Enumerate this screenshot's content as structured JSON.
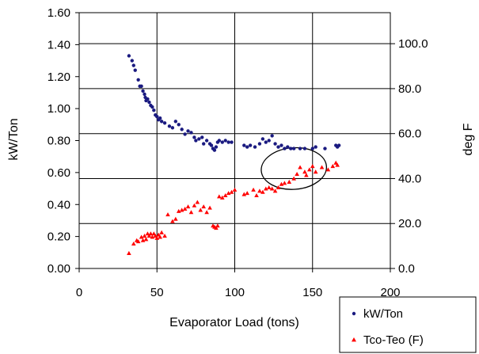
{
  "chart_data": {
    "type": "scatter",
    "xlabel": "Evaporator Load (tons)",
    "ylabel": "kW/Ton",
    "y2label": "deg F",
    "xlim": [
      0,
      200
    ],
    "ylim": [
      0,
      1.6
    ],
    "y2lim": [
      0,
      113.8
    ],
    "grid": true,
    "legend_position": "bottom-right",
    "x_ticks": [
      "0",
      "50",
      "100",
      "150",
      "200"
    ],
    "y_ticks": [
      "0.00",
      "0.20",
      "0.40",
      "0.60",
      "0.80",
      "1.00",
      "1.20",
      "1.40",
      "1.60"
    ],
    "y2_ticks": [
      "0.0",
      "20.0",
      "40.0",
      "60.0",
      "80.0",
      "100.0"
    ],
    "annotations": [
      {
        "type": "ellipse",
        "center": [
          138,
          0.625
        ],
        "rx": 21,
        "ry": 0.13
      }
    ],
    "series": [
      {
        "name": "kW/Ton",
        "axis": "left",
        "color": "#1a1a80",
        "marker": "circle",
        "points": [
          [
            32,
            1.33
          ],
          [
            34,
            1.3
          ],
          [
            35,
            1.27
          ],
          [
            36,
            1.24
          ],
          [
            38,
            1.18
          ],
          [
            39,
            1.14
          ],
          [
            40,
            1.14
          ],
          [
            41,
            1.11
          ],
          [
            42,
            1.09
          ],
          [
            42.5,
            1.07
          ],
          [
            43,
            1.05
          ],
          [
            44,
            1.06
          ],
          [
            45,
            1.04
          ],
          [
            46,
            1.02
          ],
          [
            47,
            1.01
          ],
          [
            48,
            0.99
          ],
          [
            49,
            0.96
          ],
          [
            50,
            0.95
          ],
          [
            51,
            0.93
          ],
          [
            52,
            0.94
          ],
          [
            53,
            0.92
          ],
          [
            55,
            0.91
          ],
          [
            58,
            0.89
          ],
          [
            60,
            0.88
          ],
          [
            62,
            0.92
          ],
          [
            64,
            0.9
          ],
          [
            66,
            0.87
          ],
          [
            68,
            0.84
          ],
          [
            70,
            0.86
          ],
          [
            72,
            0.85
          ],
          [
            74,
            0.82
          ],
          [
            75,
            0.8
          ],
          [
            77,
            0.81
          ],
          [
            79,
            0.82
          ],
          [
            80,
            0.78
          ],
          [
            82,
            0.8
          ],
          [
            84,
            0.78
          ],
          [
            85,
            0.77
          ],
          [
            86,
            0.75
          ],
          [
            87,
            0.74
          ],
          [
            88,
            0.76
          ],
          [
            89,
            0.79
          ],
          [
            90,
            0.8
          ],
          [
            92,
            0.79
          ],
          [
            94,
            0.8
          ],
          [
            96,
            0.79
          ],
          [
            98,
            0.79
          ],
          [
            106,
            0.77
          ],
          [
            108,
            0.76
          ],
          [
            110,
            0.77
          ],
          [
            113,
            0.76
          ],
          [
            116,
            0.78
          ],
          [
            118,
            0.81
          ],
          [
            120,
            0.79
          ],
          [
            122,
            0.8
          ],
          [
            124,
            0.83
          ],
          [
            126,
            0.78
          ],
          [
            128,
            0.76
          ],
          [
            130,
            0.77
          ],
          [
            132,
            0.75
          ],
          [
            134,
            0.76
          ],
          [
            136,
            0.75
          ],
          [
            138,
            0.75
          ],
          [
            142,
            0.75
          ],
          [
            145,
            0.75
          ],
          [
            150,
            0.75
          ],
          [
            152,
            0.76
          ],
          [
            158,
            0.75
          ],
          [
            165,
            0.77
          ],
          [
            166,
            0.76
          ],
          [
            167,
            0.77
          ]
        ]
      },
      {
        "name": "Tco-Teo (F)",
        "axis": "right",
        "color": "#ff0000",
        "marker": "triangle",
        "points": [
          [
            32,
            6.8
          ],
          [
            35,
            11
          ],
          [
            37,
            12.5
          ],
          [
            38,
            12
          ],
          [
            40,
            14
          ],
          [
            41,
            12.5
          ],
          [
            42,
            14.5
          ],
          [
            43,
            13
          ],
          [
            44,
            15.5
          ],
          [
            45,
            14.5
          ],
          [
            46,
            15.5
          ],
          [
            47,
            14
          ],
          [
            48,
            15.5
          ],
          [
            49,
            14.5
          ],
          [
            50,
            13.5
          ],
          [
            51,
            15
          ],
          [
            52,
            14
          ],
          [
            53,
            16
          ],
          [
            55,
            14.5
          ],
          [
            57,
            24
          ],
          [
            60,
            21
          ],
          [
            62,
            22
          ],
          [
            64,
            25.5
          ],
          [
            66,
            26
          ],
          [
            68,
            26.5
          ],
          [
            70,
            27.5
          ],
          [
            72,
            25
          ],
          [
            74,
            28
          ],
          [
            76,
            29.5
          ],
          [
            78,
            26
          ],
          [
            80,
            27.5
          ],
          [
            82,
            25
          ],
          [
            84,
            27
          ],
          [
            86,
            19
          ],
          [
            87,
            18.5
          ],
          [
            88,
            18
          ],
          [
            89,
            19
          ],
          [
            90,
            32
          ],
          [
            92,
            31.5
          ],
          [
            94,
            32.5
          ],
          [
            96,
            33.5
          ],
          [
            98,
            34
          ],
          [
            100,
            35
          ],
          [
            106,
            33
          ],
          [
            108,
            33.5
          ],
          [
            112,
            35
          ],
          [
            114,
            32.5
          ],
          [
            116,
            34.5
          ],
          [
            118,
            34
          ],
          [
            120,
            35.5
          ],
          [
            122,
            36
          ],
          [
            124,
            35.5
          ],
          [
            126,
            34.5
          ],
          [
            128,
            36
          ],
          [
            130,
            37.5
          ],
          [
            132,
            38
          ],
          [
            135,
            38.5
          ],
          [
            138,
            40
          ],
          [
            140,
            42
          ],
          [
            142,
            45
          ],
          [
            145,
            43
          ],
          [
            146,
            41.5
          ],
          [
            148,
            44
          ],
          [
            150,
            45.5
          ],
          [
            152,
            43
          ],
          [
            156,
            45
          ],
          [
            160,
            44
          ],
          [
            163,
            45.5
          ],
          [
            165,
            47
          ],
          [
            166,
            46
          ]
        ]
      }
    ]
  }
}
